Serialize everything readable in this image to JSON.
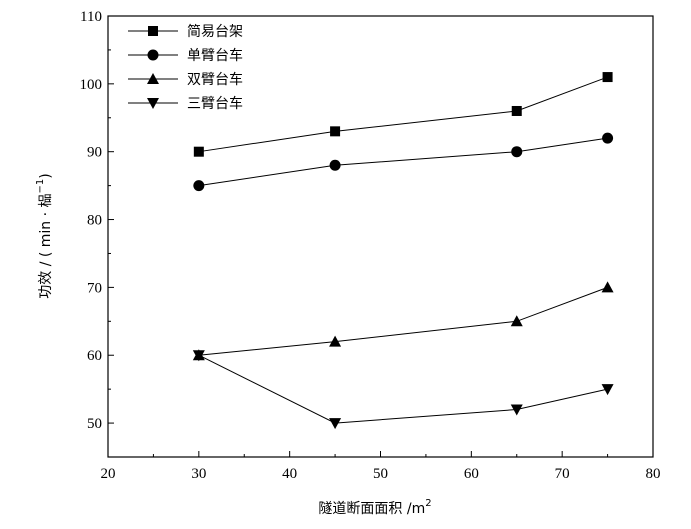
{
  "chart_data": {
    "type": "line",
    "xlabel": "隧道断面面积 /m",
    "xlabel_sup": "2",
    "ylabel": "功效 / ( min · 榀",
    "ylabel_sup": "−1",
    "ylabel_end": ")",
    "xlim": [
      20,
      80
    ],
    "ylim": [
      45,
      110
    ],
    "xticks": [
      20,
      30,
      40,
      50,
      60,
      70,
      80
    ],
    "yticks": [
      50,
      60,
      70,
      80,
      90,
      100,
      110
    ],
    "grid": false,
    "legend_position": "top-left",
    "x": [
      30,
      45,
      65,
      75
    ],
    "series": [
      {
        "name": "简易台架",
        "marker": "square",
        "values": [
          90,
          93,
          96,
          101
        ]
      },
      {
        "name": "单臂台车",
        "marker": "circle",
        "values": [
          85,
          88,
          90,
          92
        ]
      },
      {
        "name": "双臂台车",
        "marker": "triangle-up",
        "values": [
          60,
          62,
          65,
          70
        ]
      },
      {
        "name": "三臂台车",
        "marker": "triangle-down",
        "values": [
          60,
          50,
          52,
          55
        ]
      }
    ]
  }
}
